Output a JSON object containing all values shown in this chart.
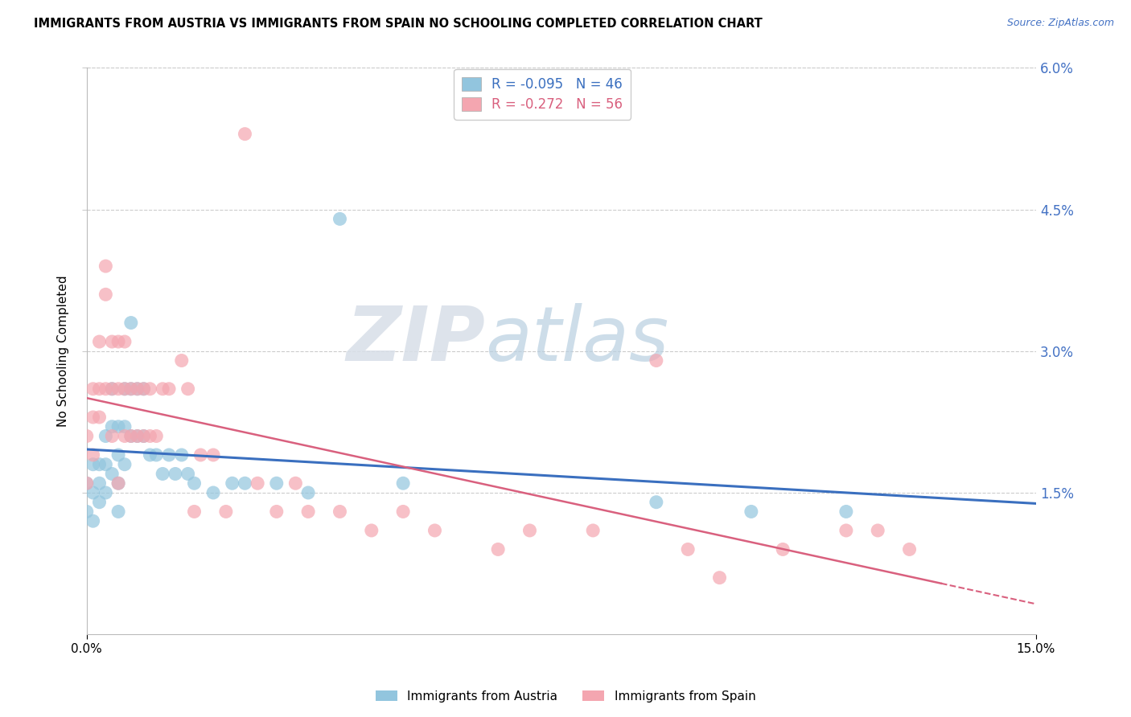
{
  "title": "IMMIGRANTS FROM AUSTRIA VS IMMIGRANTS FROM SPAIN NO SCHOOLING COMPLETED CORRELATION CHART",
  "source": "Source: ZipAtlas.com",
  "ylabel": "No Schooling Completed",
  "legend_austria": "Immigrants from Austria",
  "legend_spain": "Immigrants from Spain",
  "austria_R": "-0.095",
  "austria_N": "46",
  "spain_R": "-0.272",
  "spain_N": "56",
  "color_austria": "#92c5de",
  "color_spain": "#f4a6b0",
  "color_trendline_austria": "#3a6fbf",
  "color_trendline_spain": "#d9607e",
  "xlim": [
    0.0,
    0.15
  ],
  "ylim": [
    0.0,
    0.06
  ],
  "ytick_values": [
    0.015,
    0.03,
    0.045,
    0.06
  ],
  "ytick_labels": [
    "1.5%",
    "3.0%",
    "4.5%",
    "6.0%"
  ],
  "watermark_ZIP": "ZIP",
  "watermark_atlas": "atlas",
  "background_color": "#ffffff",
  "austria_x": [
    0.0,
    0.0,
    0.001,
    0.001,
    0.001,
    0.002,
    0.002,
    0.002,
    0.003,
    0.003,
    0.003,
    0.004,
    0.004,
    0.004,
    0.005,
    0.005,
    0.005,
    0.005,
    0.006,
    0.006,
    0.006,
    0.007,
    0.007,
    0.007,
    0.008,
    0.008,
    0.009,
    0.009,
    0.01,
    0.011,
    0.012,
    0.013,
    0.014,
    0.015,
    0.016,
    0.017,
    0.02,
    0.023,
    0.025,
    0.03,
    0.035,
    0.04,
    0.05,
    0.09,
    0.105,
    0.12
  ],
  "austria_y": [
    0.013,
    0.016,
    0.015,
    0.018,
    0.012,
    0.018,
    0.016,
    0.014,
    0.021,
    0.018,
    0.015,
    0.026,
    0.022,
    0.017,
    0.022,
    0.019,
    0.016,
    0.013,
    0.026,
    0.022,
    0.018,
    0.033,
    0.026,
    0.021,
    0.026,
    0.021,
    0.026,
    0.021,
    0.019,
    0.019,
    0.017,
    0.019,
    0.017,
    0.019,
    0.017,
    0.016,
    0.015,
    0.016,
    0.016,
    0.016,
    0.015,
    0.044,
    0.016,
    0.014,
    0.013,
    0.013
  ],
  "spain_x": [
    0.0,
    0.0,
    0.001,
    0.001,
    0.001,
    0.002,
    0.002,
    0.002,
    0.003,
    0.003,
    0.003,
    0.004,
    0.004,
    0.004,
    0.005,
    0.005,
    0.005,
    0.006,
    0.006,
    0.006,
    0.007,
    0.007,
    0.008,
    0.008,
    0.009,
    0.009,
    0.01,
    0.01,
    0.011,
    0.012,
    0.013,
    0.015,
    0.016,
    0.017,
    0.018,
    0.02,
    0.022,
    0.025,
    0.027,
    0.03,
    0.033,
    0.035,
    0.04,
    0.045,
    0.05,
    0.055,
    0.065,
    0.07,
    0.08,
    0.09,
    0.095,
    0.1,
    0.11,
    0.12,
    0.125,
    0.13
  ],
  "spain_y": [
    0.016,
    0.021,
    0.019,
    0.026,
    0.023,
    0.026,
    0.031,
    0.023,
    0.036,
    0.026,
    0.039,
    0.026,
    0.031,
    0.021,
    0.026,
    0.031,
    0.016,
    0.026,
    0.021,
    0.031,
    0.026,
    0.021,
    0.026,
    0.021,
    0.026,
    0.021,
    0.021,
    0.026,
    0.021,
    0.026,
    0.026,
    0.029,
    0.026,
    0.013,
    0.019,
    0.019,
    0.013,
    0.053,
    0.016,
    0.013,
    0.016,
    0.013,
    0.013,
    0.011,
    0.013,
    0.011,
    0.009,
    0.011,
    0.011,
    0.029,
    0.009,
    0.006,
    0.009,
    0.011,
    0.011,
    0.009
  ]
}
